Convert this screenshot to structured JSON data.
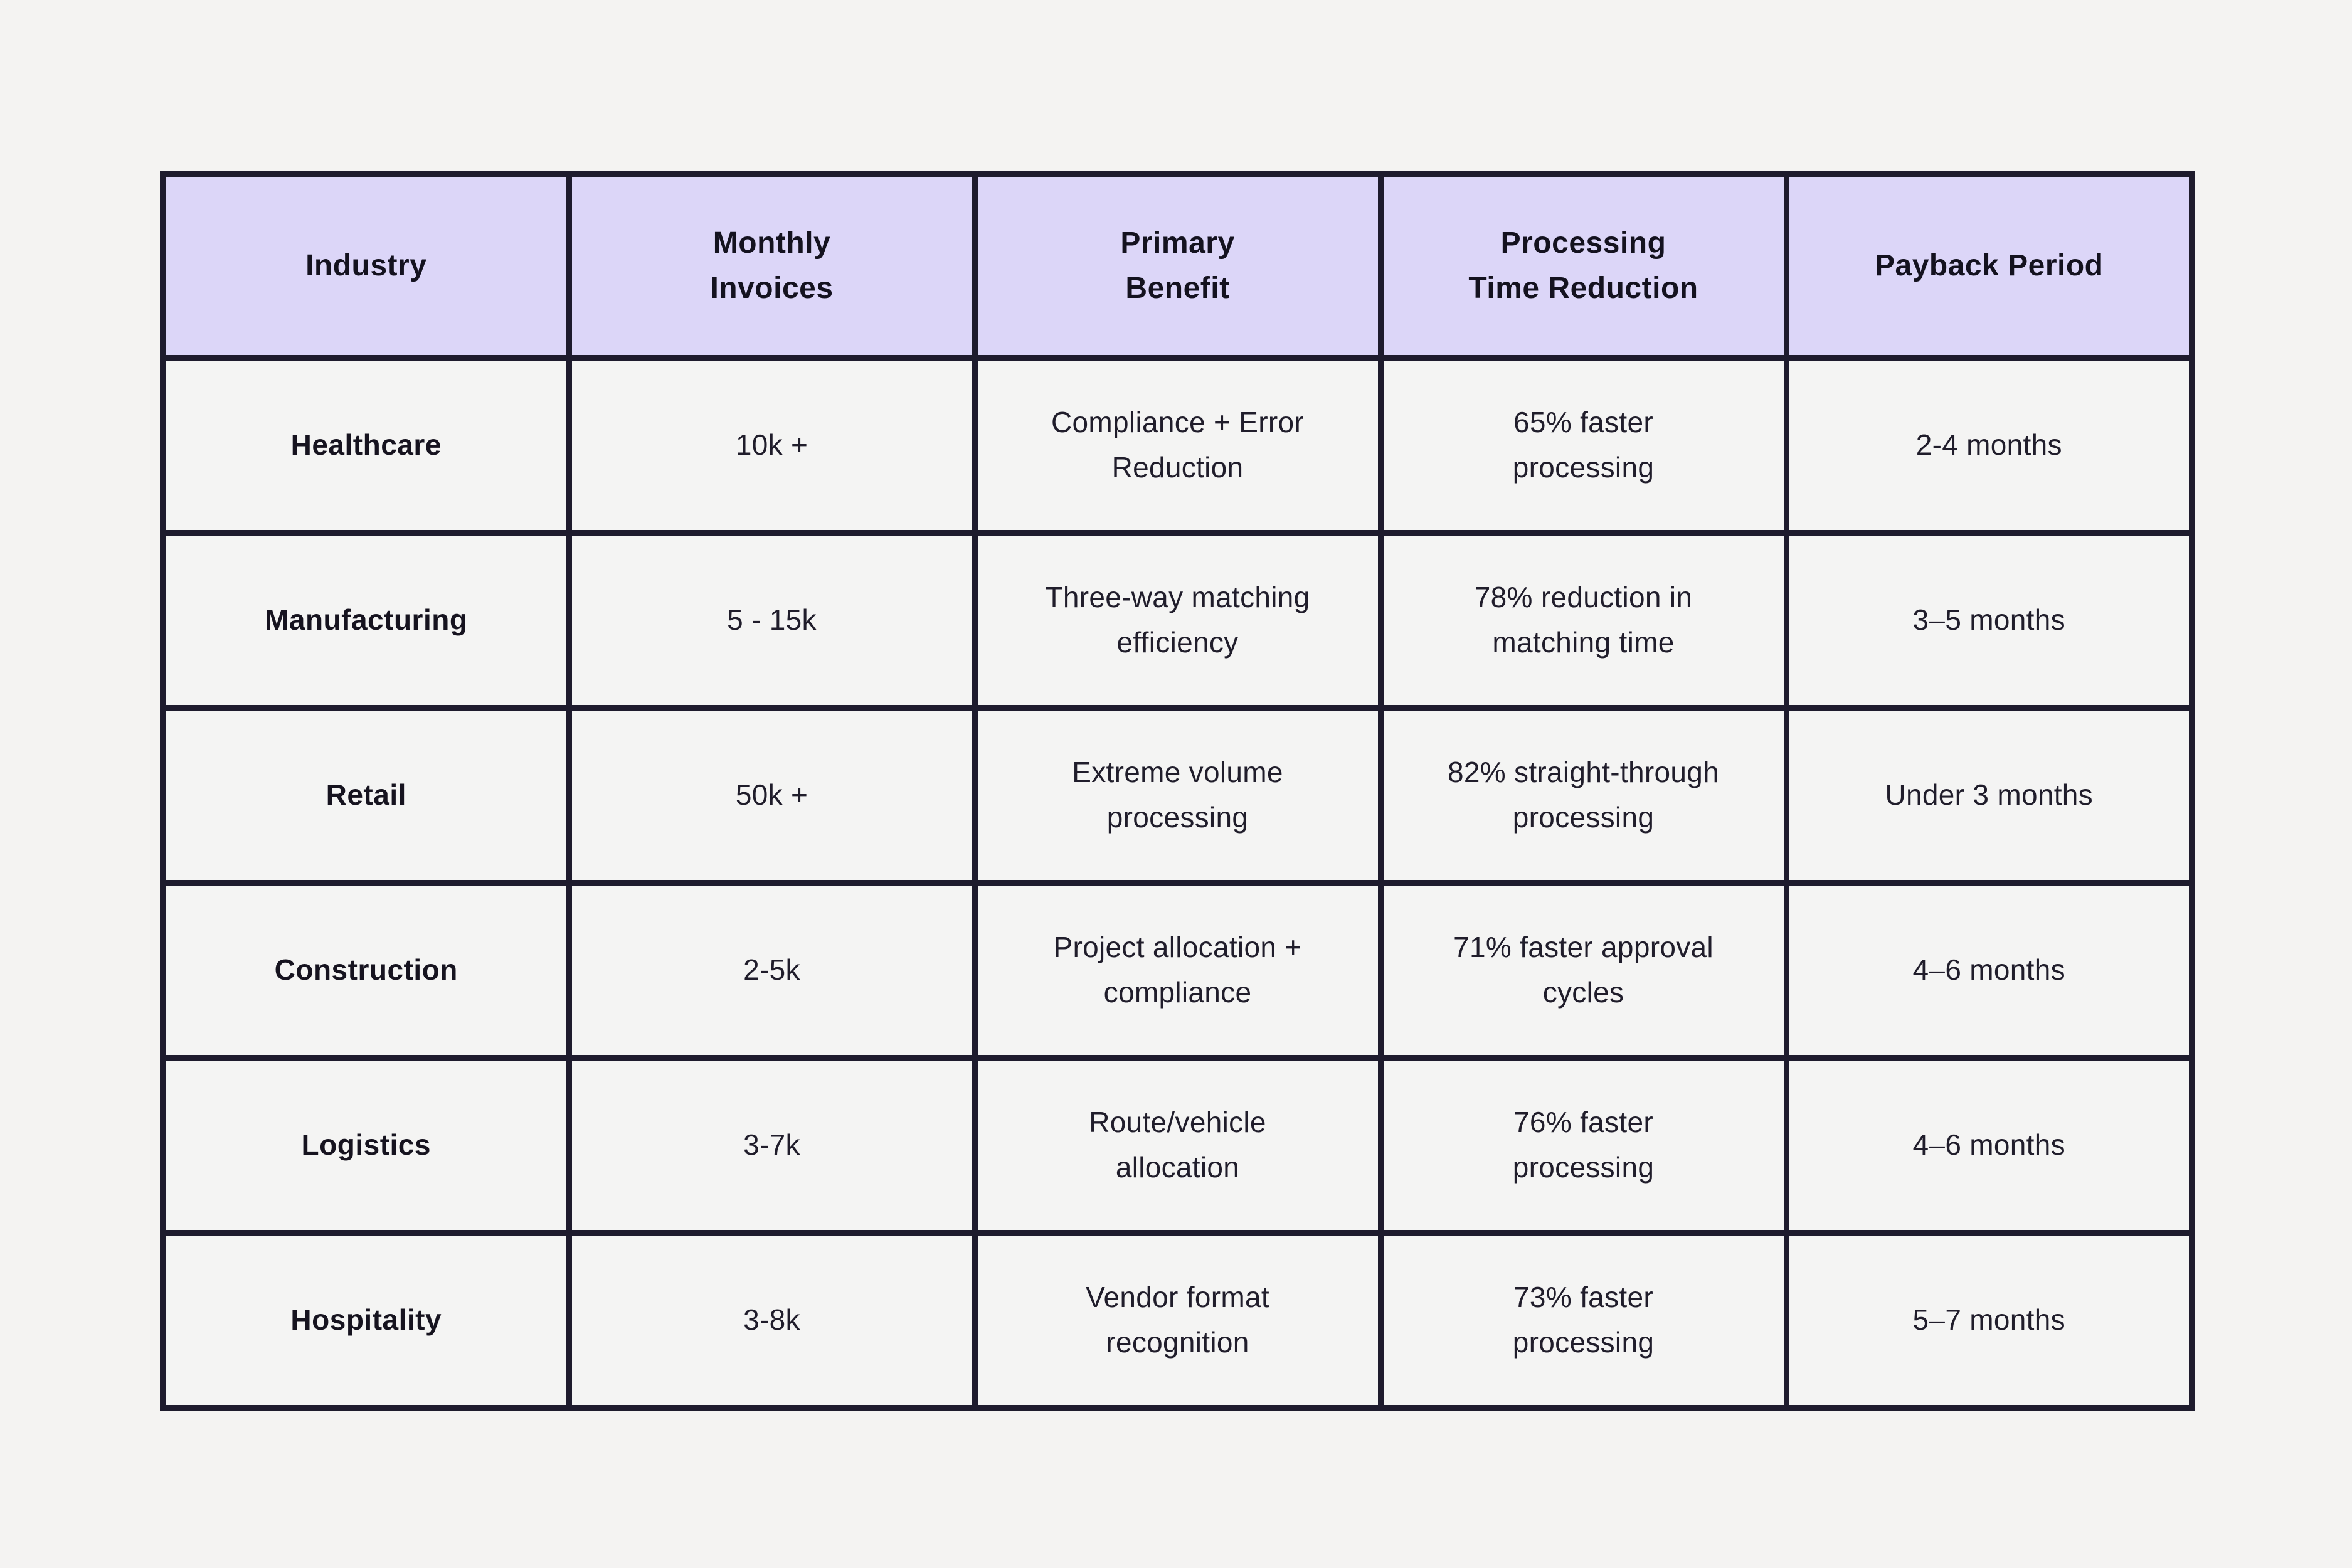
{
  "colors": {
    "page_bg": "#f4f3f2",
    "header_bg": "#dcd6f8",
    "cell_bg": "#f4f4f3",
    "border": "#1e1b2d",
    "text": "#201d2b"
  },
  "table": {
    "columns": [
      "Industry",
      "Monthly\nInvoices",
      "Primary\nBenefit",
      "Processing\nTime Reduction",
      "Payback Period"
    ],
    "rows": [
      {
        "industry": "Healthcare",
        "monthly_invoices": "10k +",
        "primary_benefit": "Compliance + Error\nReduction",
        "processing_time_reduction": "65% faster\nprocessing",
        "payback_period": "2-4 months"
      },
      {
        "industry": "Manufacturing",
        "monthly_invoices": "5 - 15k",
        "primary_benefit": "Three-way matching\nefficiency",
        "processing_time_reduction": "78% reduction in\nmatching time",
        "payback_period": "3–5 months"
      },
      {
        "industry": "Retail",
        "monthly_invoices": "50k +",
        "primary_benefit": "Extreme volume\nprocessing",
        "processing_time_reduction": "82% straight-through\nprocessing",
        "payback_period": "Under 3 months"
      },
      {
        "industry": "Construction",
        "monthly_invoices": "2-5k",
        "primary_benefit": "Project allocation +\ncompliance",
        "processing_time_reduction": "71% faster approval\ncycles",
        "payback_period": "4–6 months"
      },
      {
        "industry": "Logistics",
        "monthly_invoices": "3-7k",
        "primary_benefit": "Route/vehicle\nallocation",
        "processing_time_reduction": "76% faster\nprocessing",
        "payback_period": "4–6 months"
      },
      {
        "industry": "Hospitality",
        "monthly_invoices": "3-8k",
        "primary_benefit": "Vendor format\nrecognition",
        "processing_time_reduction": "73% faster\nprocessing",
        "payback_period": "5–7 months"
      }
    ]
  },
  "chart_data": {
    "type": "table",
    "title": "",
    "columns": [
      "Industry",
      "Monthly Invoices",
      "Primary Benefit",
      "Processing Time Reduction",
      "Payback Period"
    ],
    "rows": [
      [
        "Healthcare",
        "10k +",
        "Compliance + Error Reduction",
        "65% faster processing",
        "2-4 months"
      ],
      [
        "Manufacturing",
        "5 - 15k",
        "Three-way matching efficiency",
        "78% reduction in matching time",
        "3–5 months"
      ],
      [
        "Retail",
        "50k +",
        "Extreme volume processing",
        "82% straight-through processing",
        "Under 3 months"
      ],
      [
        "Construction",
        "2-5k",
        "Project allocation + compliance",
        "71% faster approval cycles",
        "4–6 months"
      ],
      [
        "Logistics",
        "3-7k",
        "Route/vehicle allocation",
        "76% faster processing",
        "4–6 months"
      ],
      [
        "Hospitality",
        "3-8k",
        "Vendor format recognition",
        "73% faster processing",
        "5–7 months"
      ]
    ]
  }
}
